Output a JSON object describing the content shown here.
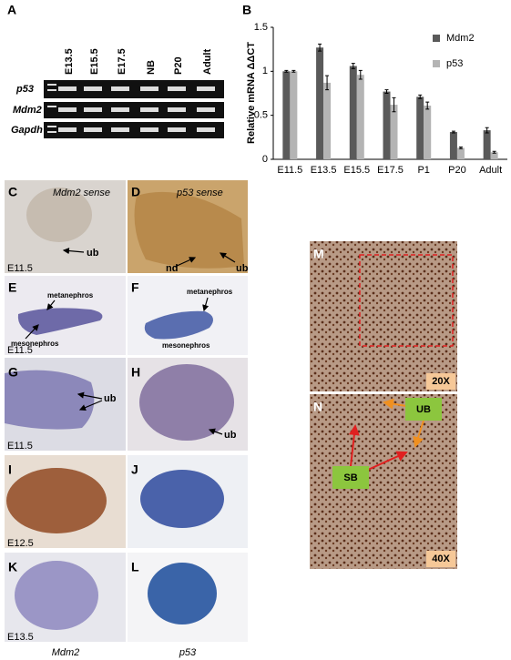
{
  "panel_a": {
    "letter": "A",
    "lanes": [
      "E13.5",
      "E15.5",
      "E17.5",
      "NB",
      "P20",
      "Adult"
    ],
    "rows": [
      "p53",
      "Mdm2",
      "Gapdh"
    ]
  },
  "panel_b_letter": "B",
  "chart_data": {
    "type": "bar",
    "y_label": "Relative mRNA ΔΔCT",
    "categories": [
      "E11.5",
      "E13.5",
      "E15.5",
      "E17.5",
      "P1",
      "P20",
      "Adult"
    ],
    "series": [
      {
        "name": "Mdm2",
        "color": "#5a5a5a",
        "values": [
          1.0,
          1.27,
          1.06,
          0.77,
          0.71,
          0.31,
          0.33
        ],
        "errors": [
          0.01,
          0.04,
          0.03,
          0.02,
          0.02,
          0.01,
          0.03
        ]
      },
      {
        "name": "p53",
        "color": "#b4b4b4",
        "values": [
          1.0,
          0.87,
          0.96,
          0.62,
          0.61,
          0.13,
          0.08
        ],
        "errors": [
          0.01,
          0.08,
          0.05,
          0.08,
          0.04,
          0.01,
          0.01
        ]
      }
    ],
    "ylim": [
      0,
      1.5
    ],
    "yticks": [
      0,
      0.5,
      1,
      1.5
    ]
  },
  "images": {
    "C": {
      "letter": "C",
      "caption": "Mdm2 sense",
      "labels": [
        "ub"
      ],
      "stage": "E11.5"
    },
    "D": {
      "letter": "D",
      "caption": "p53 sense",
      "labels": [
        "nd",
        "ub"
      ]
    },
    "E": {
      "letter": "E",
      "labels": [
        "metanephros",
        "mesonephros"
      ],
      "stage": "E11.5"
    },
    "F": {
      "letter": "F",
      "labels": [
        "metanephros",
        "mesonephros"
      ]
    },
    "G": {
      "letter": "G",
      "labels": [
        "ub"
      ],
      "stage": "E11.5"
    },
    "H": {
      "letter": "H",
      "labels": [
        "ub"
      ]
    },
    "I": {
      "letter": "I",
      "stage": "E12.5"
    },
    "J": {
      "letter": "J"
    },
    "K": {
      "letter": "K",
      "stage": "E13.5"
    },
    "L": {
      "letter": "L"
    },
    "M": {
      "letter": "M",
      "magnification": "20X"
    },
    "N": {
      "letter": "N",
      "labels": [
        "UB",
        "SB"
      ],
      "magnification": "40X"
    }
  },
  "footer": [
    "Mdm2",
    "p53"
  ]
}
